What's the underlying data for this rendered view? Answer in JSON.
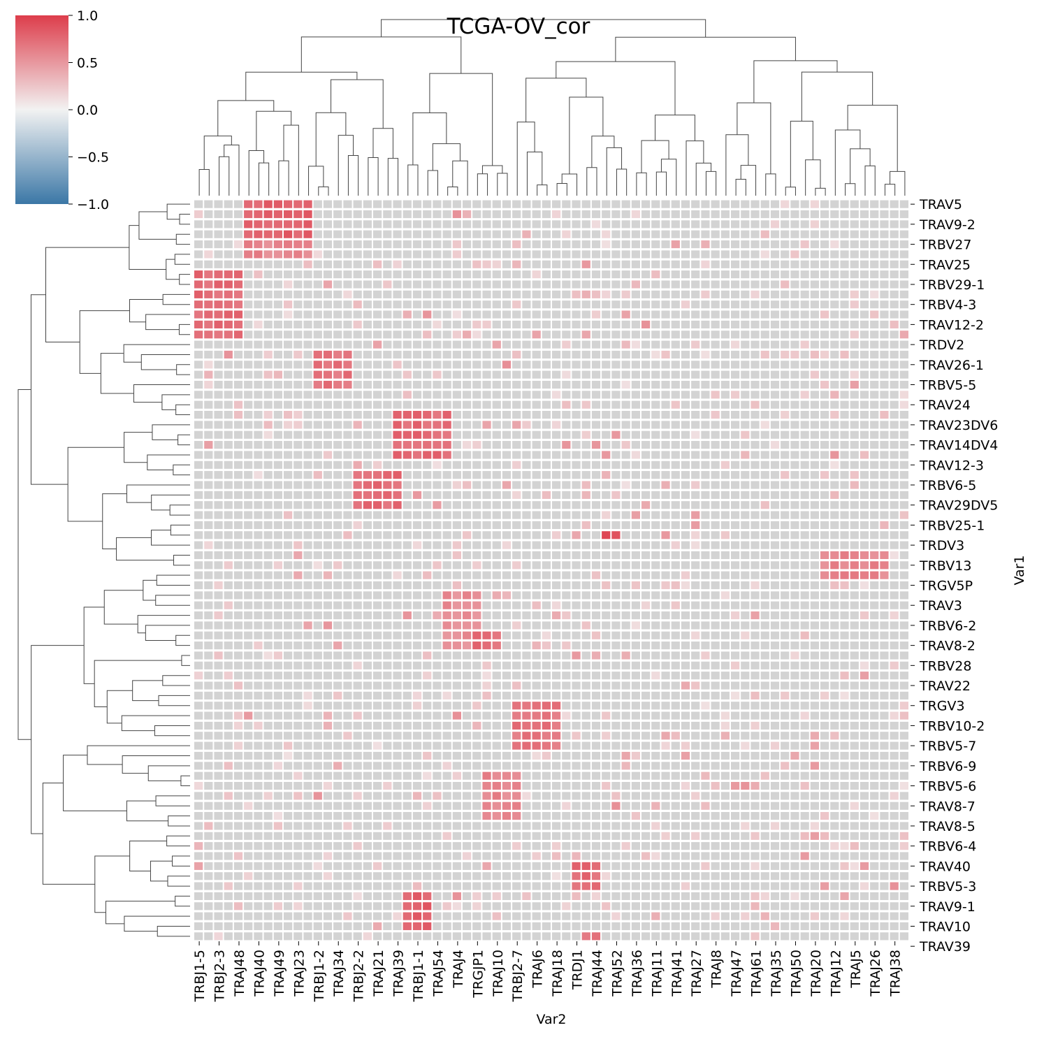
{
  "chart_data": {
    "type": "heatmap",
    "title": "TCGA-OV_cor",
    "xlabel": "Var2",
    "ylabel": "Var1",
    "x_tick_labels": [
      "TRBJ1-5",
      "TRBJ2-3",
      "TRAJ48",
      "TRAJ40",
      "TRAJ49",
      "TRAJ23",
      "TRBJ1-2",
      "TRAJ34",
      "TRBJ2-2",
      "TRAJ21",
      "TRAJ39",
      "TRBJ1-1",
      "TRAJ54",
      "TRAJ4",
      "TRGJP1",
      "TRAJ10",
      "TRBJ2-7",
      "TRAJ6",
      "TRAJ18",
      "TRDJ1",
      "TRAJ44",
      "TRAJ52",
      "TRAJ36",
      "TRAJ11",
      "TRAJ41",
      "TRAJ27",
      "TRAJ8",
      "TRAJ47",
      "TRAJ61",
      "TRAJ35",
      "TRAJ50",
      "TRAJ20",
      "TRAJ12",
      "TRAJ5",
      "TRAJ26",
      "TRAJ38"
    ],
    "y_tick_labels": [
      "TRAV5",
      "TRAV9-2",
      "TRBV27",
      "TRAV25",
      "TRBV29-1",
      "TRBV4-3",
      "TRAV12-2",
      "TRDV2",
      "TRAV26-1",
      "TRBV5-5",
      "TRAV24",
      "TRAV23DV6",
      "TRAV14DV4",
      "TRAV12-3",
      "TRBV6-5",
      "TRAV29DV5",
      "TRBV25-1",
      "TRDV3",
      "TRBV13",
      "TRGV5P",
      "TRAV3",
      "TRBV6-2",
      "TRAV8-2",
      "TRBV28",
      "TRAV22",
      "TRGV3",
      "TRBV10-2",
      "TRBV5-7",
      "TRBV6-9",
      "TRBV5-6",
      "TRAV8-7",
      "TRAV8-5",
      "TRBV6-4",
      "TRAV40",
      "TRBV5-3",
      "TRAV9-1",
      "TRAV10",
      "TRAV39"
    ],
    "n_rows": 74,
    "n_cols": 72,
    "colorbar": {
      "min": -1.0,
      "max": 1.0,
      "ticks": [
        "1.0",
        "0.5",
        "0.0",
        "−0.5",
        "−1.0"
      ]
    },
    "colors": {
      "low": "#3b77a6",
      "mid": "#f2f2f2",
      "high": "#dd3d4b",
      "missing": "#d3d3d3"
    },
    "diagonal_blocks": [
      {
        "rows": [
          0,
          6
        ],
        "cols": [
          5,
          12
        ],
        "value": 0.8
      },
      {
        "rows": [
          4,
          6
        ],
        "cols": [
          5,
          12
        ],
        "value": 0.6
      },
      {
        "rows": [
          7,
          14
        ],
        "cols": [
          0,
          5
        ],
        "value": 0.75
      },
      {
        "rows": [
          15,
          19
        ],
        "cols": [
          12,
          16
        ],
        "value": 0.7
      },
      {
        "rows": [
          21,
          26
        ],
        "cols": [
          20,
          26
        ],
        "value": 0.75
      },
      {
        "rows": [
          27,
          31
        ],
        "cols": [
          16,
          21
        ],
        "value": 0.75
      },
      {
        "rows": [
          33,
          34
        ],
        "cols": [
          41,
          43
        ],
        "value": 0.95
      },
      {
        "rows": [
          35,
          38
        ],
        "cols": [
          63,
          70
        ],
        "value": 0.6
      },
      {
        "rows": [
          39,
          45
        ],
        "cols": [
          25,
          29
        ],
        "value": 0.55
      },
      {
        "rows": [
          43,
          45
        ],
        "cols": [
          28,
          31
        ],
        "value": 0.75
      },
      {
        "rows": [
          50,
          55
        ],
        "cols": [
          32,
          37
        ],
        "value": 0.7
      },
      {
        "rows": [
          57,
          62
        ],
        "cols": [
          29,
          33
        ],
        "value": 0.6
      },
      {
        "rows": [
          66,
          69
        ],
        "cols": [
          38,
          41
        ],
        "value": 0.75
      },
      {
        "rows": [
          69,
          73
        ],
        "cols": [
          21,
          24
        ],
        "value": 0.8
      },
      {
        "rows": [
          73,
          74
        ],
        "cols": [
          39,
          41
        ],
        "value": 0.7
      }
    ]
  }
}
